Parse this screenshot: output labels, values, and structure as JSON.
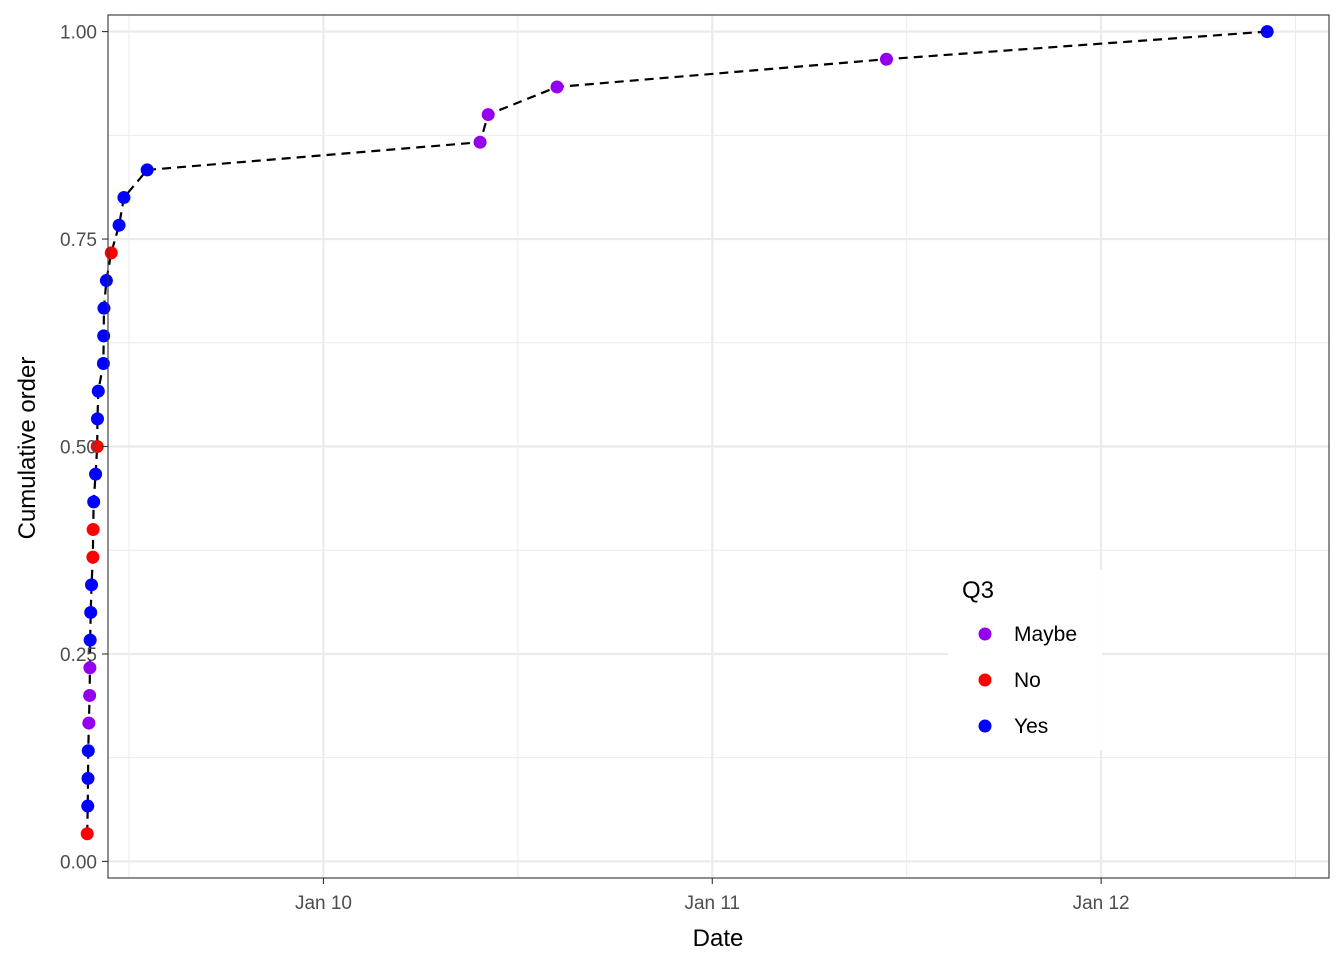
{
  "chart_data": {
    "type": "scatter",
    "title": "",
    "xlabel": "Date",
    "ylabel": "Cumulative order",
    "x_axis_type": "date",
    "xlim": [
      "Jan 9 10:42",
      "Jan 12 14:04"
    ],
    "ylim": [
      -0.02,
      1.02
    ],
    "x_ticks": [
      {
        "value": "Jan 10 00:00",
        "label": "Jan 10"
      },
      {
        "value": "Jan 11 00:00",
        "label": "Jan 11"
      },
      {
        "value": "Jan 12 00:00",
        "label": "Jan 12"
      }
    ],
    "x_minor_ticks": [
      "Jan 9 12:00",
      "Jan 10 12:00",
      "Jan 11 12:00",
      "Jan 12 12:00"
    ],
    "y_ticks": [
      {
        "value": 0.0,
        "label": "0.00"
      },
      {
        "value": 0.25,
        "label": "0.25"
      },
      {
        "value": 0.5,
        "label": "0.50"
      },
      {
        "value": 0.75,
        "label": "0.75"
      },
      {
        "value": 1.0,
        "label": "1.00"
      }
    ],
    "y_minor_ticks": [
      0.125,
      0.375,
      0.625,
      0.875
    ],
    "grid": true,
    "line_style": "dashed",
    "line_color": "#000000",
    "legend": {
      "title": "Q3",
      "placement": "bottom-right",
      "entries": [
        {
          "label": "Maybe",
          "color": "#9400ee"
        },
        {
          "label": "No",
          "color": "#ff0000"
        },
        {
          "label": "Yes",
          "color": "#0000ff"
        }
      ]
    },
    "points": [
      {
        "x": "Jan 9 09:25",
        "y": 0.0333,
        "group": "No"
      },
      {
        "x": "Jan 9 09:27",
        "y": 0.0667,
        "group": "Yes"
      },
      {
        "x": "Jan 9 09:28",
        "y": 0.1,
        "group": "Yes"
      },
      {
        "x": "Jan 9 09:29",
        "y": 0.1333,
        "group": "Yes"
      },
      {
        "x": "Jan 9 09:31",
        "y": 0.1667,
        "group": "Maybe"
      },
      {
        "x": "Jan 9 09:34",
        "y": 0.2,
        "group": "Maybe"
      },
      {
        "x": "Jan 9 09:35",
        "y": 0.2333,
        "group": "Maybe"
      },
      {
        "x": "Jan 9 09:36",
        "y": 0.2667,
        "group": "Yes"
      },
      {
        "x": "Jan 9 09:38",
        "y": 0.3,
        "group": "Yes"
      },
      {
        "x": "Jan 9 09:41",
        "y": 0.3333,
        "group": "Yes"
      },
      {
        "x": "Jan 9 09:46",
        "y": 0.3667,
        "group": "No"
      },
      {
        "x": "Jan 9 09:47",
        "y": 0.4,
        "group": "No"
      },
      {
        "x": "Jan 9 09:49",
        "y": 0.4333,
        "group": "Yes"
      },
      {
        "x": "Jan 9 09:56",
        "y": 0.4667,
        "group": "Yes"
      },
      {
        "x": "Jan 9 10:02",
        "y": 0.5,
        "group": "No"
      },
      {
        "x": "Jan 9 10:03",
        "y": 0.5333,
        "group": "Yes"
      },
      {
        "x": "Jan 9 10:06",
        "y": 0.5667,
        "group": "Yes"
      },
      {
        "x": "Jan 9 10:25",
        "y": 0.6,
        "group": "Yes"
      },
      {
        "x": "Jan 9 10:26",
        "y": 0.6333,
        "group": "Yes"
      },
      {
        "x": "Jan 9 10:27",
        "y": 0.6667,
        "group": "Yes"
      },
      {
        "x": "Jan 9 10:36",
        "y": 0.7,
        "group": "Yes"
      },
      {
        "x": "Jan 9 10:54",
        "y": 0.7333,
        "group": "No"
      },
      {
        "x": "Jan 9 11:23",
        "y": 0.7667,
        "group": "Yes"
      },
      {
        "x": "Jan 9 11:41",
        "y": 0.8,
        "group": "Yes"
      },
      {
        "x": "Jan 9 13:07",
        "y": 0.8333,
        "group": "Yes"
      },
      {
        "x": "Jan 10 09:40",
        "y": 0.8667,
        "group": "Maybe"
      },
      {
        "x": "Jan 10 10:10",
        "y": 0.9,
        "group": "Maybe"
      },
      {
        "x": "Jan 10 14:25",
        "y": 0.9333,
        "group": "Maybe"
      },
      {
        "x": "Jan 11 10:45",
        "y": 0.9667,
        "group": "Maybe"
      },
      {
        "x": "Jan 12 10:15",
        "y": 1.0,
        "group": "Yes"
      }
    ]
  }
}
